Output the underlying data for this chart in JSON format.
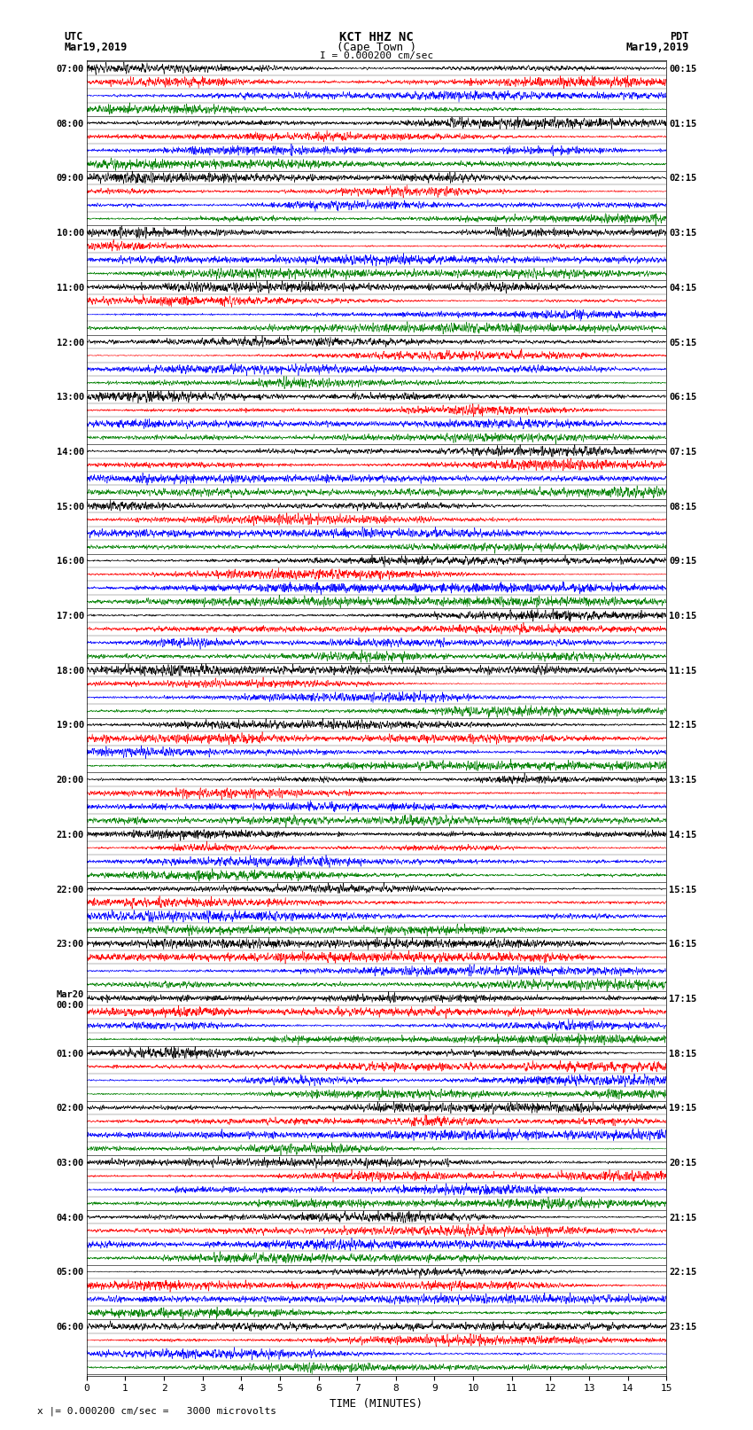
{
  "title_line1": "KCT HHZ NC",
  "title_line2": "(Cape Town )",
  "title_line3": "I = 0.000200 cm/sec",
  "left_header_line1": "UTC",
  "left_header_line2": "Mar19,2019",
  "right_header_line1": "PDT",
  "right_header_line2": "Mar19,2019",
  "xlabel": "TIME (MINUTES)",
  "footer": "x |= 0.000200 cm/sec =   3000 microvolts",
  "utc_labels": [
    "07:00",
    "",
    "",
    "",
    "08:00",
    "",
    "",
    "",
    "09:00",
    "",
    "",
    "",
    "10:00",
    "",
    "",
    "",
    "11:00",
    "",
    "",
    "",
    "12:00",
    "",
    "",
    "",
    "13:00",
    "",
    "",
    "",
    "14:00",
    "",
    "",
    "",
    "15:00",
    "",
    "",
    "",
    "16:00",
    "",
    "",
    "",
    "17:00",
    "",
    "",
    "",
    "18:00",
    "",
    "",
    "",
    "19:00",
    "",
    "",
    "",
    "20:00",
    "",
    "",
    "",
    "21:00",
    "",
    "",
    "",
    "22:00",
    "",
    "",
    "",
    "23:00",
    "",
    "",
    "",
    "Mar20\n00:00",
    "",
    "",
    "",
    "01:00",
    "",
    "",
    "",
    "02:00",
    "",
    "",
    "",
    "03:00",
    "",
    "",
    "",
    "04:00",
    "",
    "",
    "",
    "05:00",
    "",
    "",
    "",
    "06:00",
    "",
    "",
    ""
  ],
  "pdt_labels": [
    "00:15",
    "",
    "",
    "",
    "01:15",
    "",
    "",
    "",
    "02:15",
    "",
    "",
    "",
    "03:15",
    "",
    "",
    "",
    "04:15",
    "",
    "",
    "",
    "05:15",
    "",
    "",
    "",
    "06:15",
    "",
    "",
    "",
    "07:15",
    "",
    "",
    "",
    "08:15",
    "",
    "",
    "",
    "09:15",
    "",
    "",
    "",
    "10:15",
    "",
    "",
    "",
    "11:15",
    "",
    "",
    "",
    "12:15",
    "",
    "",
    "",
    "13:15",
    "",
    "",
    "",
    "14:15",
    "",
    "",
    "",
    "15:15",
    "",
    "",
    "",
    "16:15",
    "",
    "",
    "",
    "17:15",
    "",
    "",
    "",
    "18:15",
    "",
    "",
    "",
    "19:15",
    "",
    "",
    "",
    "20:15",
    "",
    "",
    "",
    "21:15",
    "",
    "",
    "",
    "22:15",
    "",
    "",
    "",
    "23:15",
    "",
    "",
    ""
  ],
  "num_traces": 96,
  "samples_per_trace": 4500,
  "bg_color": "white",
  "colors_cycle": [
    "black",
    "red",
    "blue",
    "green"
  ],
  "trace_amplitude": 0.48,
  "seed": 42,
  "lw": 0.4
}
